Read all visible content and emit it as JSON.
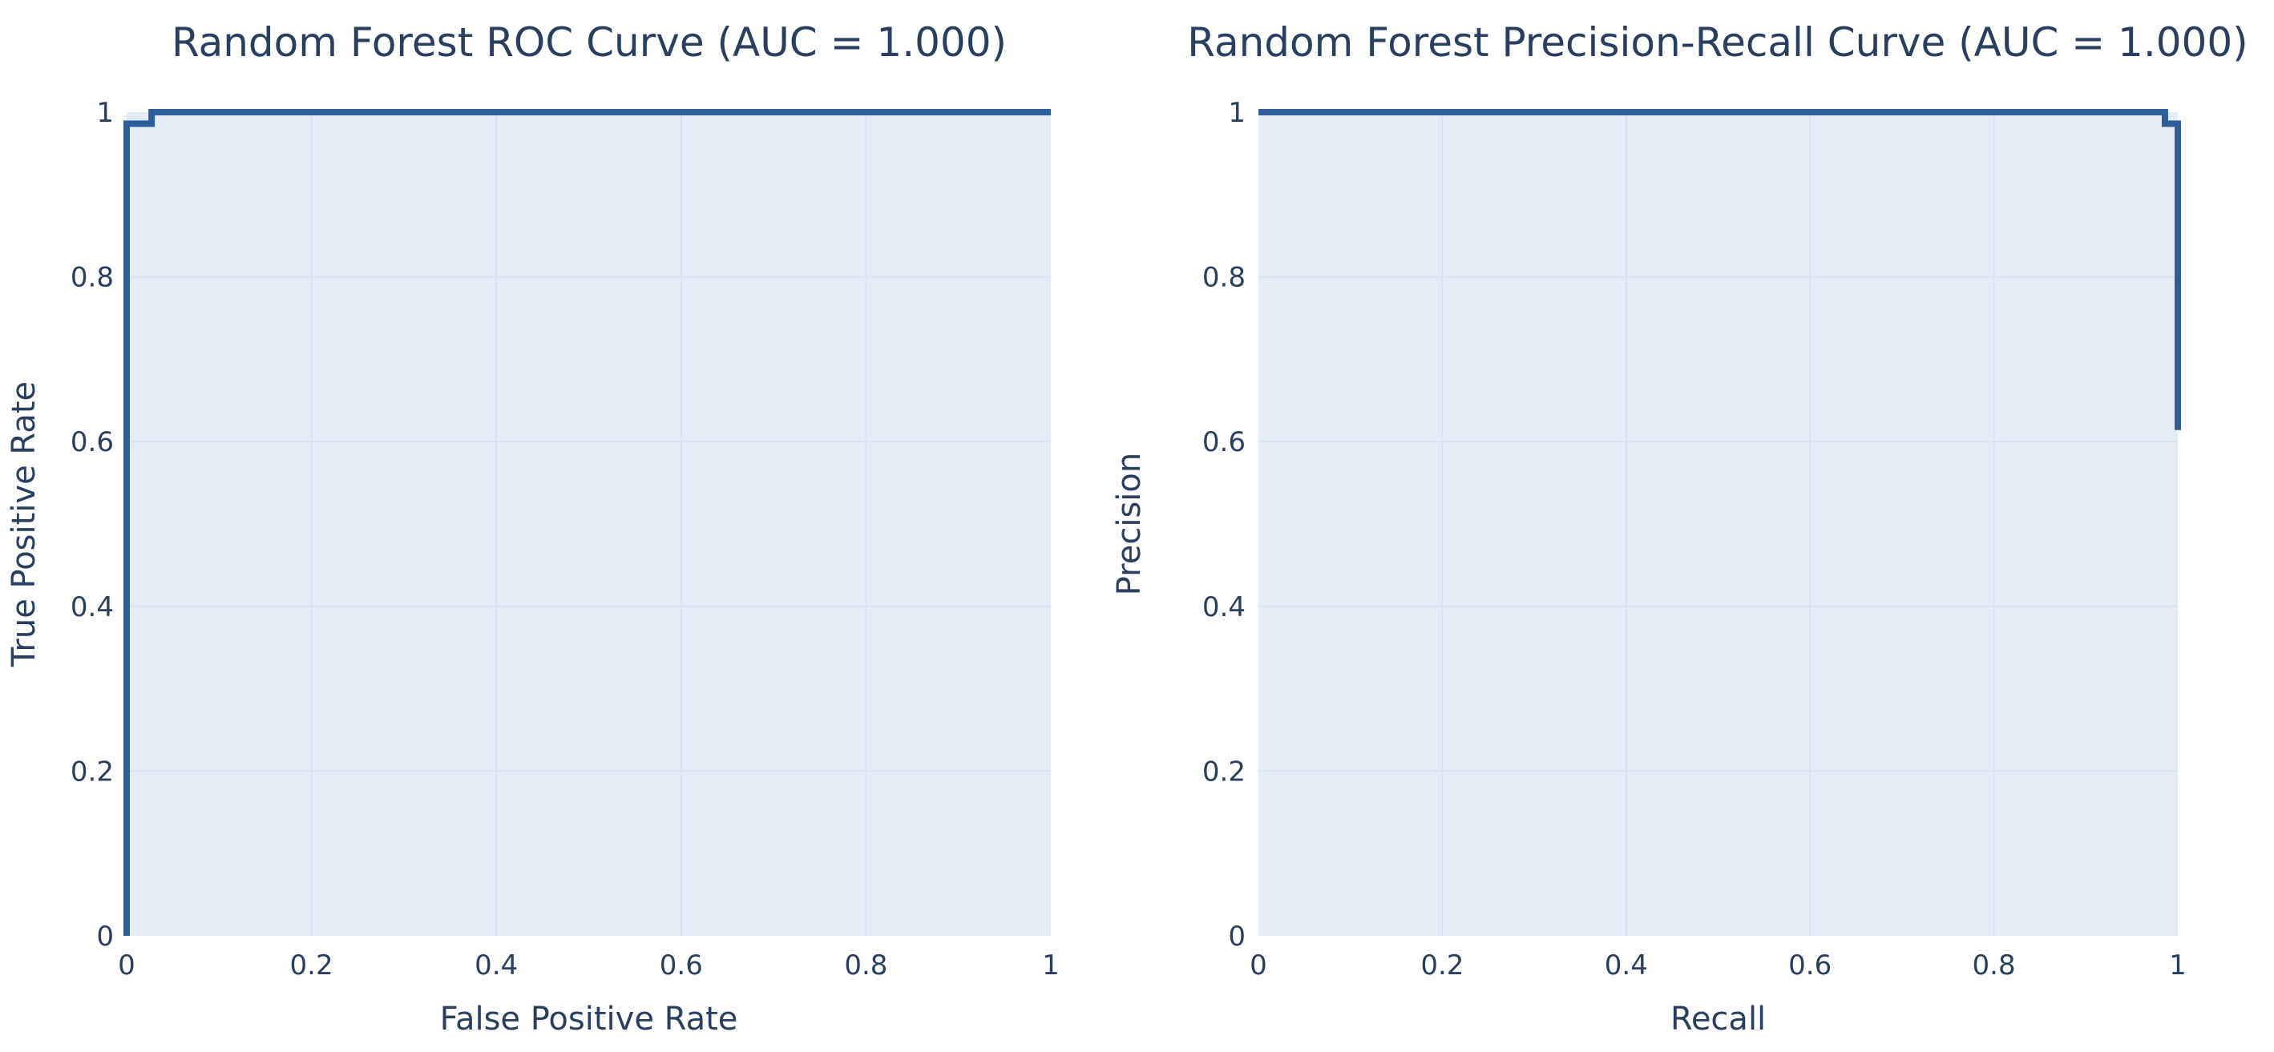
{
  "chart_data": [
    {
      "type": "area",
      "title": "Random Forest ROC Curve (AUC = 1.000)",
      "xlabel": "False Positive Rate",
      "ylabel": "True Positive Rate",
      "xlim": [
        0,
        1
      ],
      "ylim": [
        0,
        1
      ],
      "x_ticks": [
        "0",
        "0.2",
        "0.4",
        "0.6",
        "0.8",
        "1"
      ],
      "y_ticks": [
        "0",
        "0.2",
        "0.4",
        "0.6",
        "0.8",
        "1"
      ],
      "grid": true,
      "legend": "none",
      "line_color": "#2f5f9a",
      "fill_color": "#e5ecf6",
      "grid_color": "#c9d6ea",
      "x": [
        0,
        0,
        0.027,
        0.027,
        1
      ],
      "y": [
        0,
        0.986,
        0.986,
        1,
        1
      ]
    },
    {
      "type": "area",
      "title": "Random Forest Precision-Recall Curve (AUC = 1.000)",
      "xlabel": "Recall",
      "ylabel": "Precision",
      "xlim": [
        0,
        1
      ],
      "ylim": [
        0,
        1
      ],
      "x_ticks": [
        "0",
        "0.2",
        "0.4",
        "0.6",
        "0.8",
        "1"
      ],
      "y_ticks": [
        "0",
        "0.2",
        "0.4",
        "0.6",
        "0.8",
        "1"
      ],
      "grid": true,
      "legend": "none",
      "line_color": "#2f5f9a",
      "fill_color": "#e5ecf6",
      "grid_color": "#c9d6ea",
      "x": [
        0,
        0.986,
        0.986,
        1,
        1
      ],
      "y": [
        1,
        1,
        0.986,
        0.986,
        0.614
      ]
    }
  ]
}
